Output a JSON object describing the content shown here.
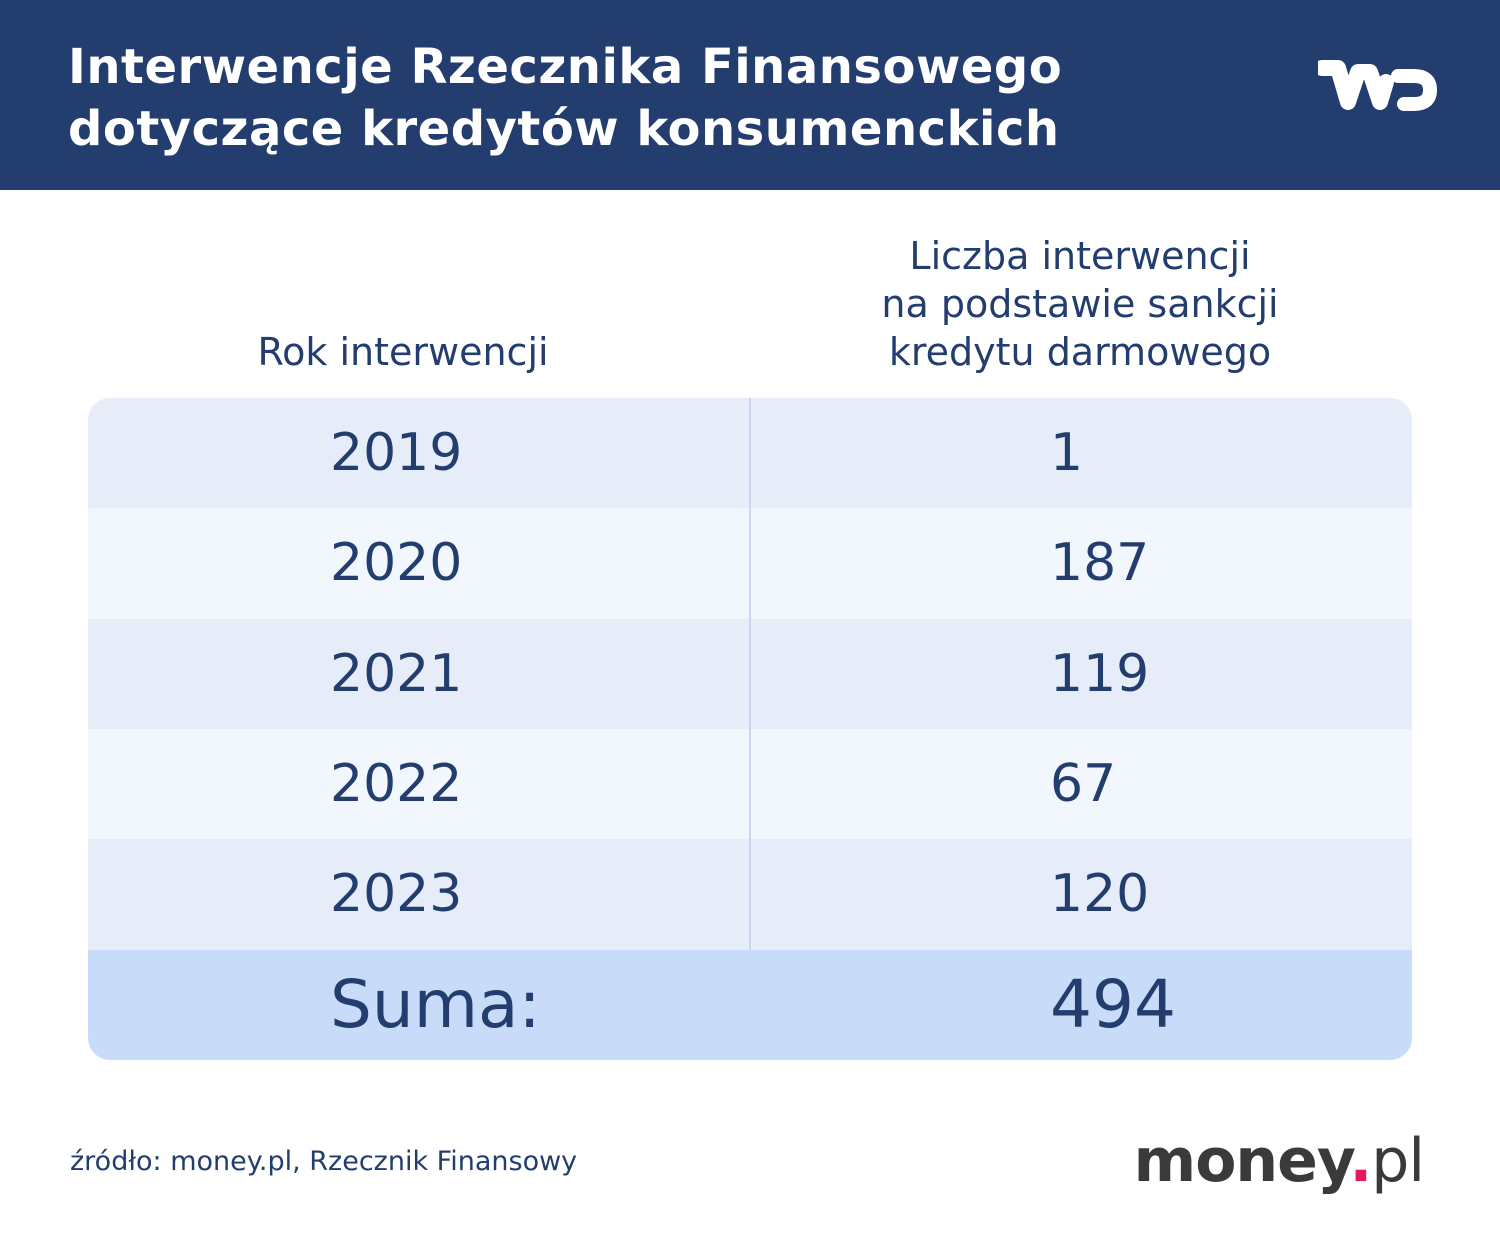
{
  "header": {
    "title": [
      "Interwencje Rzecznika Finansowego",
      "dotyczące kredytów konsumenckich"
    ]
  },
  "table": {
    "columns": [
      [
        "Rok interwencji"
      ],
      [
        "Liczba interwencji",
        "na podstawie sankcji",
        "kredytu darmowego"
      ]
    ],
    "rows": [
      [
        "2019",
        1
      ],
      [
        "2020",
        187
      ],
      [
        "2021",
        119
      ],
      [
        "2022",
        67
      ],
      [
        "2023",
        120
      ]
    ],
    "total": [
      "Suma:",
      494
    ]
  },
  "source": "źródło: money.pl, Rzecznik Finansowy",
  "brand": [
    "money",
    ".",
    "pl"
  ]
}
